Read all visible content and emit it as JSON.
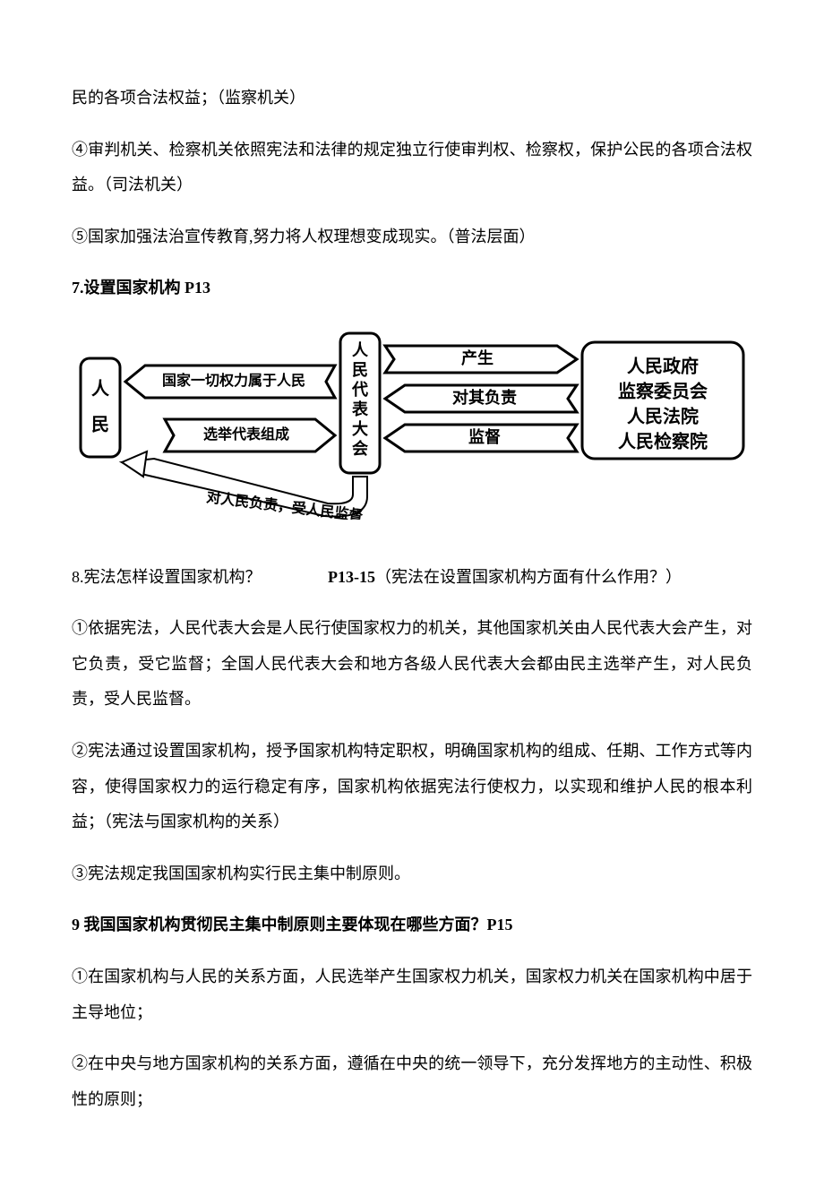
{
  "p_top1": "民的各项合法权益；（监察机关）",
  "p_top2": "④审判机关、检察机关依照宪法和法律的规定独立行使审判权、检察权，保护公民的各项合法权益。（司法机关）",
  "p_top3": "⑤国家加强法治宣传教育,努力将人权理想变成现实。（普法层面）",
  "h7": "7.设置国家机构 P13",
  "diagram": {
    "left_box": [
      "人",
      "民"
    ],
    "arrow_left_top": "国家一切权力属于人民",
    "arrow_left_bottom": "选举代表组成",
    "curve_label": "对人民负责，受人民监督",
    "center_box": [
      "人",
      "民",
      "代",
      "表",
      "大",
      "会"
    ],
    "arrow_r1": "产生",
    "arrow_r2": "对其负责",
    "arrow_r3": "监督",
    "right_box": [
      "人民政府",
      "监察委员会",
      "人民法院",
      "人民检察院"
    ],
    "colors": {
      "stroke": "#000000",
      "fill": "#ffffff",
      "text": "#000000"
    },
    "font": {
      "box_size": 20,
      "arrow_label_size": 16,
      "curve_label_size": 16,
      "right_box_size": 20
    }
  },
  "q8_text": "8.宪法怎样设置国家机构？",
  "q8_ref": "P13-15",
  "q8_paren": "（宪法在设置国家机构方面有什么作用？）",
  "p8_1": "①依据宪法，人民代表大会是人民行使国家权力的机关，其他国家机关由人民代表大会产生，对它负责，受它监督；全国人民代表大会和地方各级人民代表大会都由民主选举产生，对人民负责，受人民监督。",
  "p8_2": "②宪法通过设置国家机构，授予国家机构特定职权，明确国家机构的组成、任期、工作方式等内容，使得国家权力的运行稳定有序，国家机构依据宪法行使权力，以实现和维护人民的根本利益；（宪法与国家机构的关系）",
  "p8_3": "③宪法规定我国国家机构实行民主集中制原则。",
  "h9": "9 我国国家机构贯彻民主集中制原则主要体现在哪些方面？P15",
  "p9_1": "①在国家机构与人民的关系方面，人民选举产生国家权力机关，国家权力机关在国家机构中居于主导地位；",
  "p9_2": "②在中央与地方国家机构的关系方面，遵循在中央的统一领导下，充分发挥地方的主动性、积极性的原则；"
}
